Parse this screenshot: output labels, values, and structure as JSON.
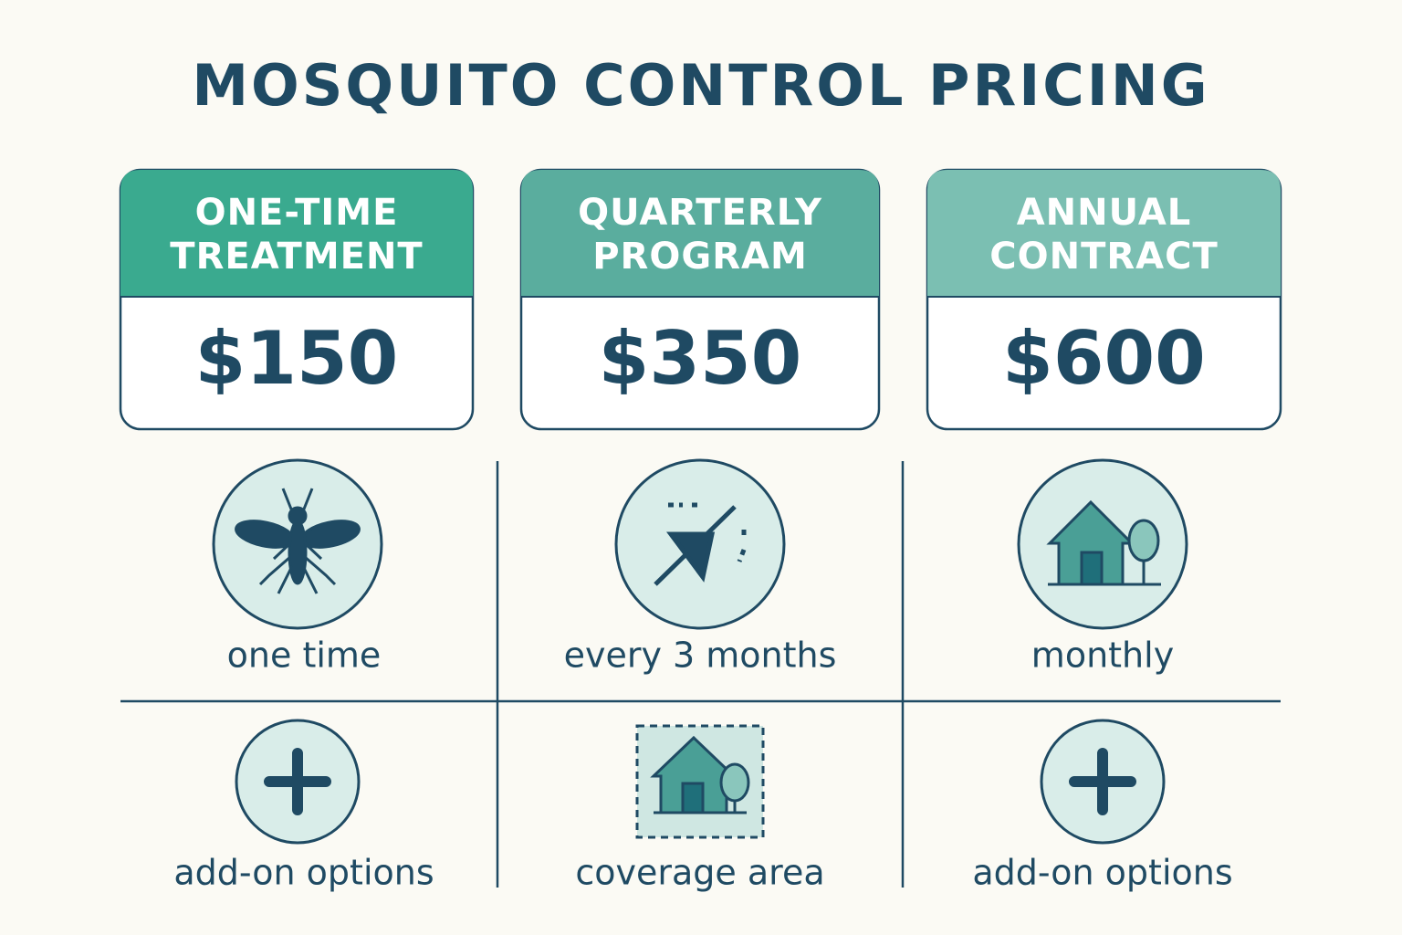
{
  "title": "MOSQUITO CONTROL PRICING",
  "plans": [
    {
      "name": [
        "ONE-TIME",
        "TREATMENT"
      ],
      "price": "$150"
    },
    {
      "name": [
        "QUARTERLY",
        "PROGRAM"
      ],
      "price": "$350"
    },
    {
      "name": [
        "ANNUAL",
        "CONTRACT"
      ],
      "price": "$600"
    }
  ],
  "features": [
    [
      "one time",
      "every 3 months",
      "monthly"
    ],
    [
      "add-on options",
      "coverage area",
      "add-on options"
    ]
  ]
}
